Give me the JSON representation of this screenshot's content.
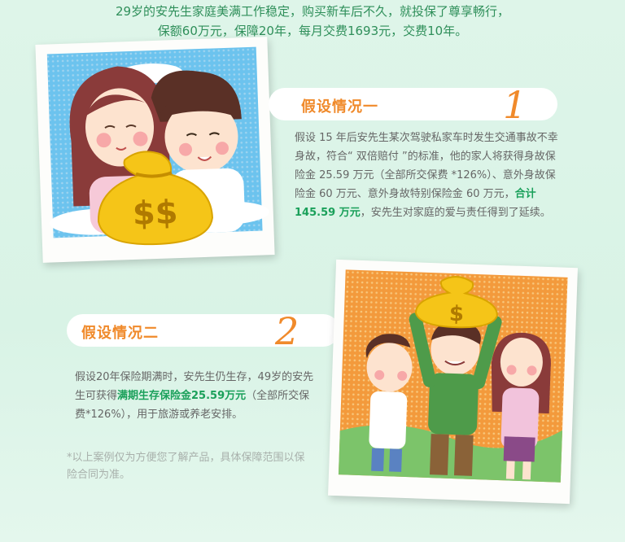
{
  "intro": {
    "line1": "29岁的安先生家庭美满工作稳定，购买新车后不久，就投保了尊享畅行，",
    "line2": "保额60万元，保障20年，每月交费1693元，交费10年。"
  },
  "case1": {
    "title": "假设情况一",
    "number": "1",
    "text_before": "假设 15 年后安先生某次驾驶私家车时发生交通事故不幸身故，符合“ 双倍赔付 ”的标准，他的家人将获得身故保险金 25.59 万元（全部所交保费 *126%）、意外身故保险金 60 万元、意外身故特别保险金 60 万元，",
    "highlight": "合计 145.59 万元",
    "text_after": "，安先生对家庭的爱与责任得到了延续。"
  },
  "case2": {
    "title": "假设情况二",
    "number": "2",
    "text_before": "假设20年保险期满时，安先生仍生存，49岁的安先生可获得",
    "highlight": "满期生存保险金25.59万元",
    "text_after": "（全部所交保费*126%），用于旅游或养老安排。"
  },
  "note": "*以上案例仅为方便您了解产品，具体保障范围以保险合同为准。",
  "illustration1": {
    "money_bag_label": "$$"
  },
  "illustration2": {
    "money_bag_label": "$"
  },
  "colors": {
    "accent": "#f08a2b",
    "highlight": "#1aa05a",
    "intro_text": "#2f8f5a",
    "background": "#dff5e9"
  }
}
